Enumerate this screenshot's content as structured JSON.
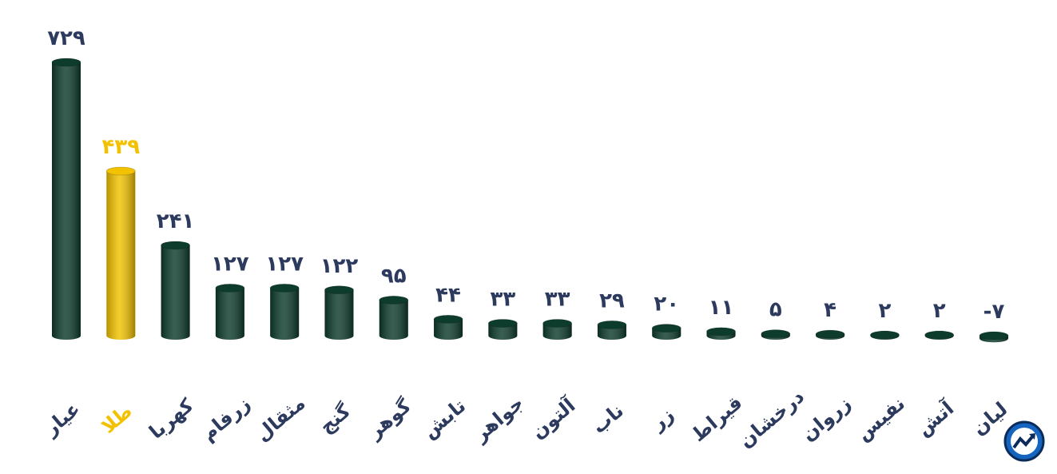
{
  "chart_data": {
    "type": "bar",
    "categories": [
      "عیار",
      "طلا",
      "کهربا",
      "زرفام",
      "مثقال",
      "گنج",
      "گوهر",
      "تابش",
      "جواهر",
      "آلتون",
      "ناب",
      "زر",
      "قیراط",
      "درخشان",
      "زروان",
      "نفیس",
      "آتش",
      "لیان"
    ],
    "values": [
      729,
      439,
      241,
      127,
      127,
      122,
      95,
      44,
      33,
      33,
      29,
      20,
      11,
      5,
      4,
      2,
      2,
      -7
    ],
    "value_labels": [
      "۷۲۹",
      "۴۳۹",
      "۲۴۱",
      "۱۲۷",
      "۱۲۷",
      "۱۲۲",
      "۹۵",
      "۴۴",
      "۳۳",
      "۳۳",
      "۲۹",
      "۲۰",
      "۱۱",
      "۵",
      "۴",
      "۲",
      "۲",
      "-۷"
    ],
    "colors": [
      "#0d3b2c",
      "#f2c200",
      "#0d3b2c",
      "#0d3b2c",
      "#0d3b2c",
      "#0d3b2c",
      "#0d3b2c",
      "#0d3b2c",
      "#0d3b2c",
      "#0d3b2c",
      "#0d3b2c",
      "#0d3b2c",
      "#0d3b2c",
      "#0d3b2c",
      "#0d3b2c",
      "#0d3b2c",
      "#0d3b2c",
      "#0d3b2c"
    ]
  }
}
